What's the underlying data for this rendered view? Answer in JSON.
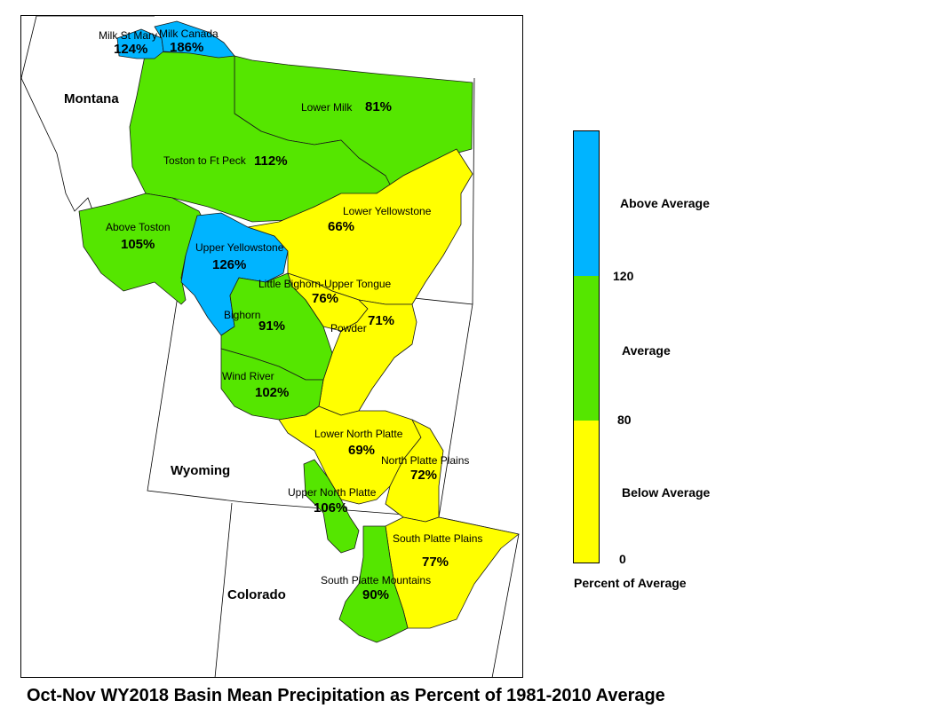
{
  "map": {
    "title": "Oct-Nov WY2018 Basin Mean Precipitation as Percent of 1981-2010 Average",
    "states": [
      "Montana",
      "Wyoming",
      "Colorado"
    ],
    "categories": {
      "above": {
        "color": "#00b4ff"
      },
      "average": {
        "color": "#55e600"
      },
      "below": {
        "color": "#ffff00"
      }
    },
    "basins": [
      {
        "name": "Milk St Mary",
        "pct": "124%",
        "category": "above"
      },
      {
        "name": "Milk Canada",
        "pct": "186%",
        "category": "above"
      },
      {
        "name": "Lower Milk",
        "pct": "81%",
        "category": "average"
      },
      {
        "name": "Toston to Ft Peck",
        "pct": "112%",
        "category": "average"
      },
      {
        "name": "Above Toston",
        "pct": "105%",
        "category": "average"
      },
      {
        "name": "Upper Yellowstone",
        "pct": "126%",
        "category": "above"
      },
      {
        "name": "Lower Yellowstone",
        "pct": "66%",
        "category": "below"
      },
      {
        "name": "Little Bighorn-Upper Tongue",
        "pct": "76%",
        "category": "below"
      },
      {
        "name": "Powder",
        "pct": "71%",
        "category": "below"
      },
      {
        "name": "Bighorn",
        "pct": "91%",
        "category": "average"
      },
      {
        "name": "Wind River",
        "pct": "102%",
        "category": "average"
      },
      {
        "name": "Lower North Platte",
        "pct": "69%",
        "category": "below"
      },
      {
        "name": "North Platte Plains",
        "pct": "72%",
        "category": "below"
      },
      {
        "name": "Upper North Platte",
        "pct": "106%",
        "category": "average"
      },
      {
        "name": "South Platte Plains",
        "pct": "77%",
        "category": "below"
      },
      {
        "name": "South Platte Mountains",
        "pct": "90%",
        "category": "average"
      }
    ]
  },
  "legend": {
    "title": "Percent of Average",
    "classes": [
      "Above Average",
      "Average",
      "Below Average"
    ],
    "breaks": [
      "120",
      "80",
      "0"
    ]
  }
}
